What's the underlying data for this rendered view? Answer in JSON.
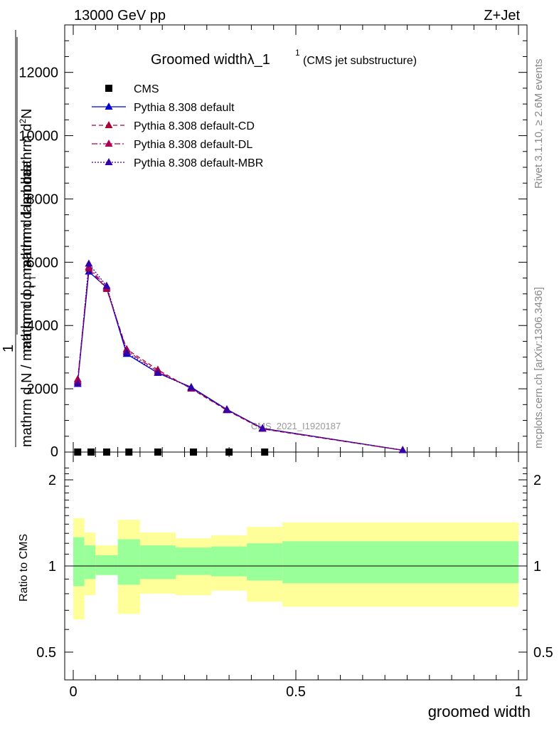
{
  "header": {
    "energy": "13000 GeV pp",
    "process": "Z+Jet",
    "title_main": "Groomed width",
    "title_symbol": "λ_1",
    "title_sup": "1",
    "title_sub": "(CMS jet substructure)",
    "side_rivet": "Rivet 3.1.10, ≥ 2.6M events",
    "side_mcplots": "mcplots.cern.ch [arXiv:1306.3436]",
    "watermark": "CMS_2021_I1920187"
  },
  "yaxis_main_label": {
    "numerator_top": "mathrm d",
    "numerator_sup": "2",
    "numerator_N": "N",
    "denominator_top": "mathrm d p",
    "denominator_sub": "T",
    "denominator_rest": " mathrm d lambda",
    "prefix_one": "1",
    "prefix_den": "mathrm d N / mathrm d p",
    "prefix_den_sub": "T",
    "prefix_den_rest": " mathrm d lambda"
  },
  "ratio_ylabel": "Ratio to CMS",
  "xlabel": "groomed width",
  "legend": [
    {
      "label": "CMS",
      "color": "#000000",
      "style": "marker-square"
    },
    {
      "label": "Pythia 8.308 default",
      "color": "#0000cc",
      "style": "solid"
    },
    {
      "label": "Pythia 8.308 default-CD",
      "color": "#aa0033",
      "style": "dashed"
    },
    {
      "label": "Pythia 8.308 default-DL",
      "color": "#aa0055",
      "style": "dashdot"
    },
    {
      "label": "Pythia 8.308 default-MBR",
      "color": "#3300aa",
      "style": "dotted"
    }
  ],
  "chart_data": [
    {
      "type": "line",
      "panel": "main",
      "xlim": [
        0,
        1
      ],
      "ylim": [
        0,
        13500
      ],
      "yticks": [
        2000,
        4000,
        6000,
        8000,
        10000,
        12000
      ],
      "yticklabels": [
        "2000",
        "4000",
        "6000",
        "8000",
        "10000",
        "12000"
      ],
      "series": [
        {
          "name": "CMS",
          "color": "#000000",
          "x": [
            0.01,
            0.04,
            0.075,
            0.125,
            0.19,
            0.27,
            0.35,
            0.43
          ],
          "values": [
            0,
            0,
            0,
            0,
            0,
            0,
            0,
            0
          ]
        },
        {
          "name": "Pythia 8.308 default",
          "color": "#0000cc",
          "x": [
            0.01,
            0.035,
            0.075,
            0.12,
            0.19,
            0.265,
            0.345,
            0.425,
            0.74
          ],
          "values": [
            2200,
            5700,
            5200,
            3100,
            2500,
            2050,
            1350,
            750,
            60
          ]
        },
        {
          "name": "Pythia 8.308 default-CD",
          "color": "#aa0033",
          "x": [
            0.01,
            0.035,
            0.075,
            0.12,
            0.19,
            0.265,
            0.345,
            0.425,
            0.74
          ],
          "values": [
            2300,
            5800,
            5150,
            3250,
            2600,
            2000,
            1320,
            730,
            55
          ]
        },
        {
          "name": "Pythia 8.308 default-DL",
          "color": "#aa0055",
          "x": [
            0.01,
            0.035,
            0.075,
            0.12,
            0.19,
            0.265,
            0.345,
            0.425,
            0.74
          ],
          "values": [
            2250,
            5850,
            5200,
            3200,
            2550,
            2020,
            1340,
            740,
            58
          ]
        },
        {
          "name": "Pythia 8.308 default-MBR",
          "color": "#3300aa",
          "x": [
            0.01,
            0.035,
            0.075,
            0.12,
            0.19,
            0.265,
            0.345,
            0.425,
            0.74
          ],
          "values": [
            2150,
            5950,
            5250,
            3150,
            2500,
            2030,
            1330,
            745,
            62
          ]
        }
      ]
    },
    {
      "type": "area",
      "panel": "ratio",
      "xlim": [
        0,
        1
      ],
      "ylim": [
        0.4,
        2.3
      ],
      "yticks": [
        0.5,
        1,
        2
      ],
      "yticklabels": [
        "0.5",
        "1",
        "2"
      ],
      "xticks": [
        0,
        0.5,
        1
      ],
      "xticklabels": [
        "0",
        "0.5",
        "1"
      ],
      "bins": [
        {
          "lo": 0.0,
          "hi": 0.025,
          "yellow": [
            0.65,
            1.47
          ],
          "green": [
            0.85,
            1.26
          ]
        },
        {
          "lo": 0.025,
          "hi": 0.05,
          "yellow": [
            0.79,
            1.31
          ],
          "green": [
            0.9,
            1.18
          ]
        },
        {
          "lo": 0.05,
          "hi": 0.1,
          "yellow": [
            0.93,
            1.18
          ],
          "green": [
            0.93,
            1.09
          ]
        },
        {
          "lo": 0.1,
          "hi": 0.15,
          "yellow": [
            0.68,
            1.45
          ],
          "green": [
            0.86,
            1.24
          ]
        },
        {
          "lo": 0.15,
          "hi": 0.23,
          "yellow": [
            0.8,
            1.31
          ],
          "green": [
            0.9,
            1.18
          ]
        },
        {
          "lo": 0.23,
          "hi": 0.31,
          "yellow": [
            0.79,
            1.25
          ],
          "green": [
            0.93,
            1.16
          ]
        },
        {
          "lo": 0.31,
          "hi": 0.39,
          "yellow": [
            0.82,
            1.28
          ],
          "green": [
            0.92,
            1.17
          ]
        },
        {
          "lo": 0.39,
          "hi": 0.47,
          "yellow": [
            0.75,
            1.37
          ],
          "green": [
            0.89,
            1.2
          ]
        },
        {
          "lo": 0.47,
          "hi": 1.0,
          "yellow": [
            0.72,
            1.42
          ],
          "green": [
            0.87,
            1.22
          ]
        }
      ],
      "reference_line": 1
    }
  ]
}
